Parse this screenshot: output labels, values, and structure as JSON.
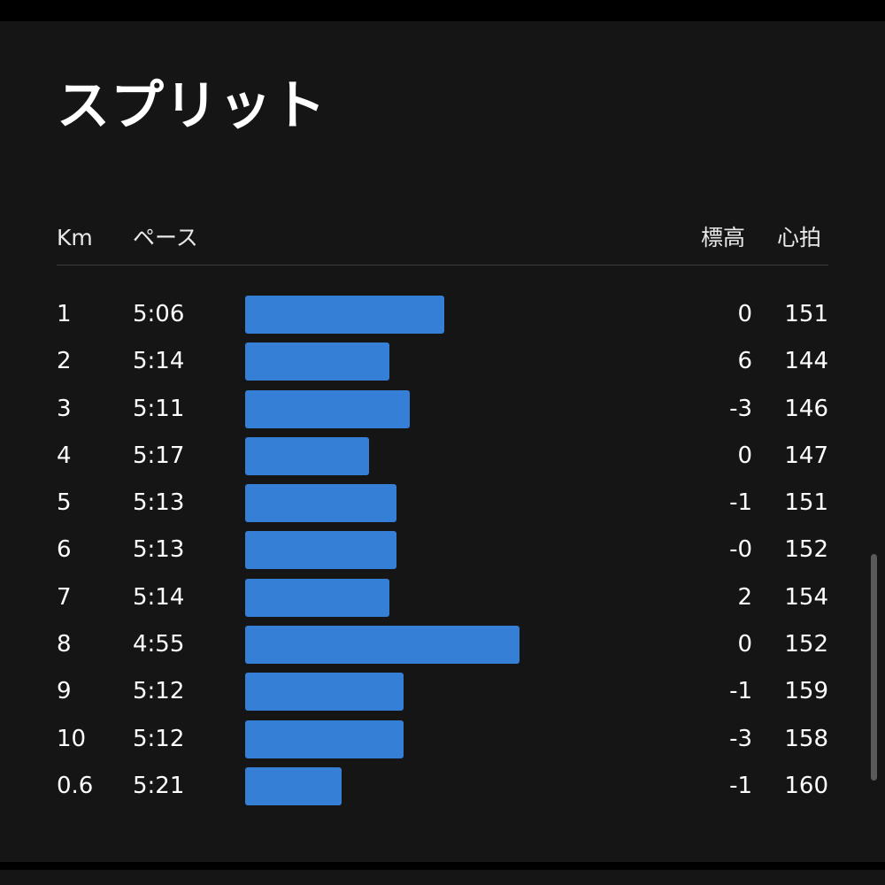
{
  "title": "スプリット",
  "columns": {
    "km": "Km",
    "pace": "ペース",
    "elevation": "標高",
    "heart_rate": "心拍"
  },
  "accent_color": "#3580d6",
  "splits": [
    {
      "km": "1",
      "pace": "5:06",
      "pace_seconds": 306,
      "elevation": "0",
      "heart_rate": "151"
    },
    {
      "km": "2",
      "pace": "5:14",
      "pace_seconds": 314,
      "elevation": "6",
      "heart_rate": "144"
    },
    {
      "km": "3",
      "pace": "5:11",
      "pace_seconds": 311,
      "elevation": "-3",
      "heart_rate": "146"
    },
    {
      "km": "4",
      "pace": "5:17",
      "pace_seconds": 317,
      "elevation": "0",
      "heart_rate": "147"
    },
    {
      "km": "5",
      "pace": "5:13",
      "pace_seconds": 313,
      "elevation": "-1",
      "heart_rate": "151"
    },
    {
      "km": "6",
      "pace": "5:13",
      "pace_seconds": 313,
      "elevation": "-0",
      "heart_rate": "152"
    },
    {
      "km": "7",
      "pace": "5:14",
      "pace_seconds": 314,
      "elevation": "2",
      "heart_rate": "154"
    },
    {
      "km": "8",
      "pace": "4:55",
      "pace_seconds": 295,
      "elevation": "0",
      "heart_rate": "152"
    },
    {
      "km": "9",
      "pace": "5:12",
      "pace_seconds": 312,
      "elevation": "-1",
      "heart_rate": "159"
    },
    {
      "km": "10",
      "pace": "5:12",
      "pace_seconds": 312,
      "elevation": "-3",
      "heart_rate": "158"
    },
    {
      "km": "0.6",
      "pace": "5:21",
      "pace_seconds": 321,
      "elevation": "-1",
      "heart_rate": "160"
    }
  ]
}
